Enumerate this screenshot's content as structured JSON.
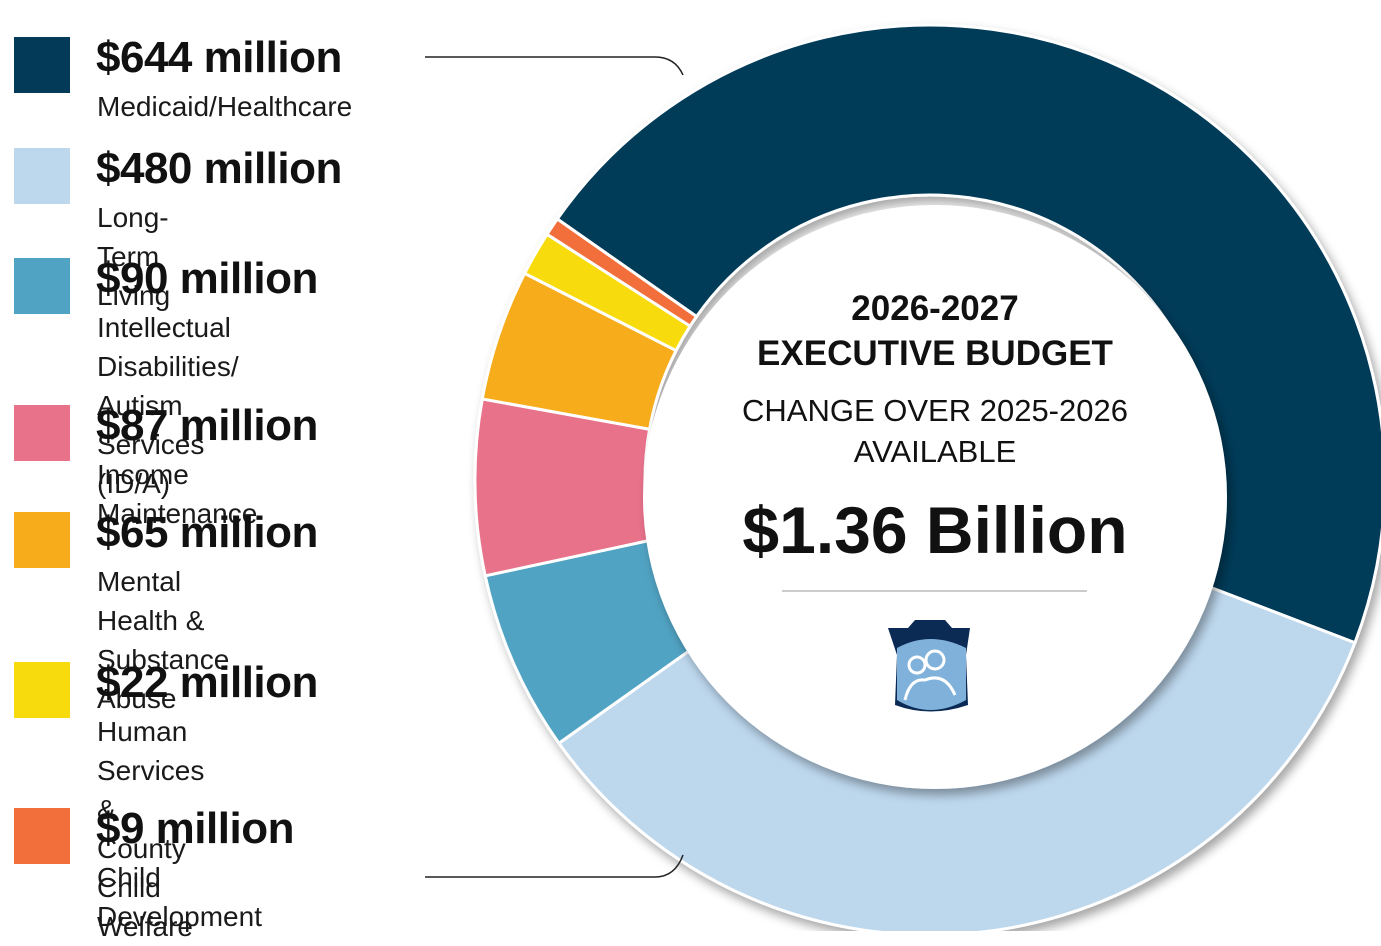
{
  "chart_data": {
    "type": "pie",
    "donut": true,
    "title": "2026-2027",
    "subtitle": "EXECUTIVE BUDGET",
    "annotations": [
      "CHANGE OVER 2025-2026",
      "AVAILABLE",
      "$1.36 Billion"
    ],
    "categories": [
      "Medicaid/Healthcare",
      "Long-Term Living",
      "Intellectual Disabilities/\nAutism Services (ID/A)",
      "Income Maintenance",
      "Mental Health &\nSubstance Abuse",
      "Human Services &\nCounty Child Welfare",
      "Child Development"
    ],
    "values": [
      644,
      480,
      90,
      87,
      65,
      22,
      9
    ],
    "value_labels": [
      "$644 million",
      "$480 million",
      "$90 million",
      "$87 million",
      "$65 million",
      "$22 million",
      "$9 million"
    ],
    "colors": [
      "#023a58",
      "#bdd7ed",
      "#51a3c3",
      "#e9728b",
      "#f7ac1b",
      "#f8db0d",
      "#f26e3a"
    ]
  }
}
